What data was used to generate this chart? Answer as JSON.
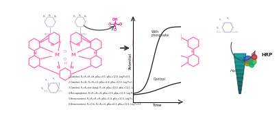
{
  "bg_color": "#ffffff",
  "pink": "#FF69B4",
  "dpink": "#FF1493",
  "lpink": "#FFB6C1",
  "gray_struct": "#BBBBCC",
  "with_phosphate_label": "With\nphosphate",
  "control_label": "Control",
  "xlabel": "Time",
  "ylabel": "Potential",
  "compound_lines": [
    "1 Catechol, R₁=R₂=R₃=H, pKa₁=9.5, pKa₂=12.8, Log P=0.9",
    "2 Catechol, R₁=Br, R₂=R₃=Cl, pKa₁=6.8, pKa₂=12.0, Log P=2.3",
    "3 Catechol, R₁=R₂=tert-butyl, R₃=H, pKa₁=10.0, pKa₂=14.1, LogP=4.5",
    "4 Mercaptophenol, R₁=R₂=R₃=H, pKa₁=6.8, pKa₂=11.8, Log P=1.6",
    "5 Benzresorcinol, R₁=R₂=R₃=H, pKa₁=5.9, pKa₂=11.5, Log P=2.8",
    "6 Benzresorcinol, R₁=CH₃, R₂=R₃=H, pKa₁=6.3, pKa₂=11.0, Log P=3.3"
  ],
  "h2o2_label": "H₂O₂",
  "hrp_label": "HRP",
  "teal_dark": "#006666",
  "teal_mid": "#009999",
  "teal_light": "#20B2AA"
}
